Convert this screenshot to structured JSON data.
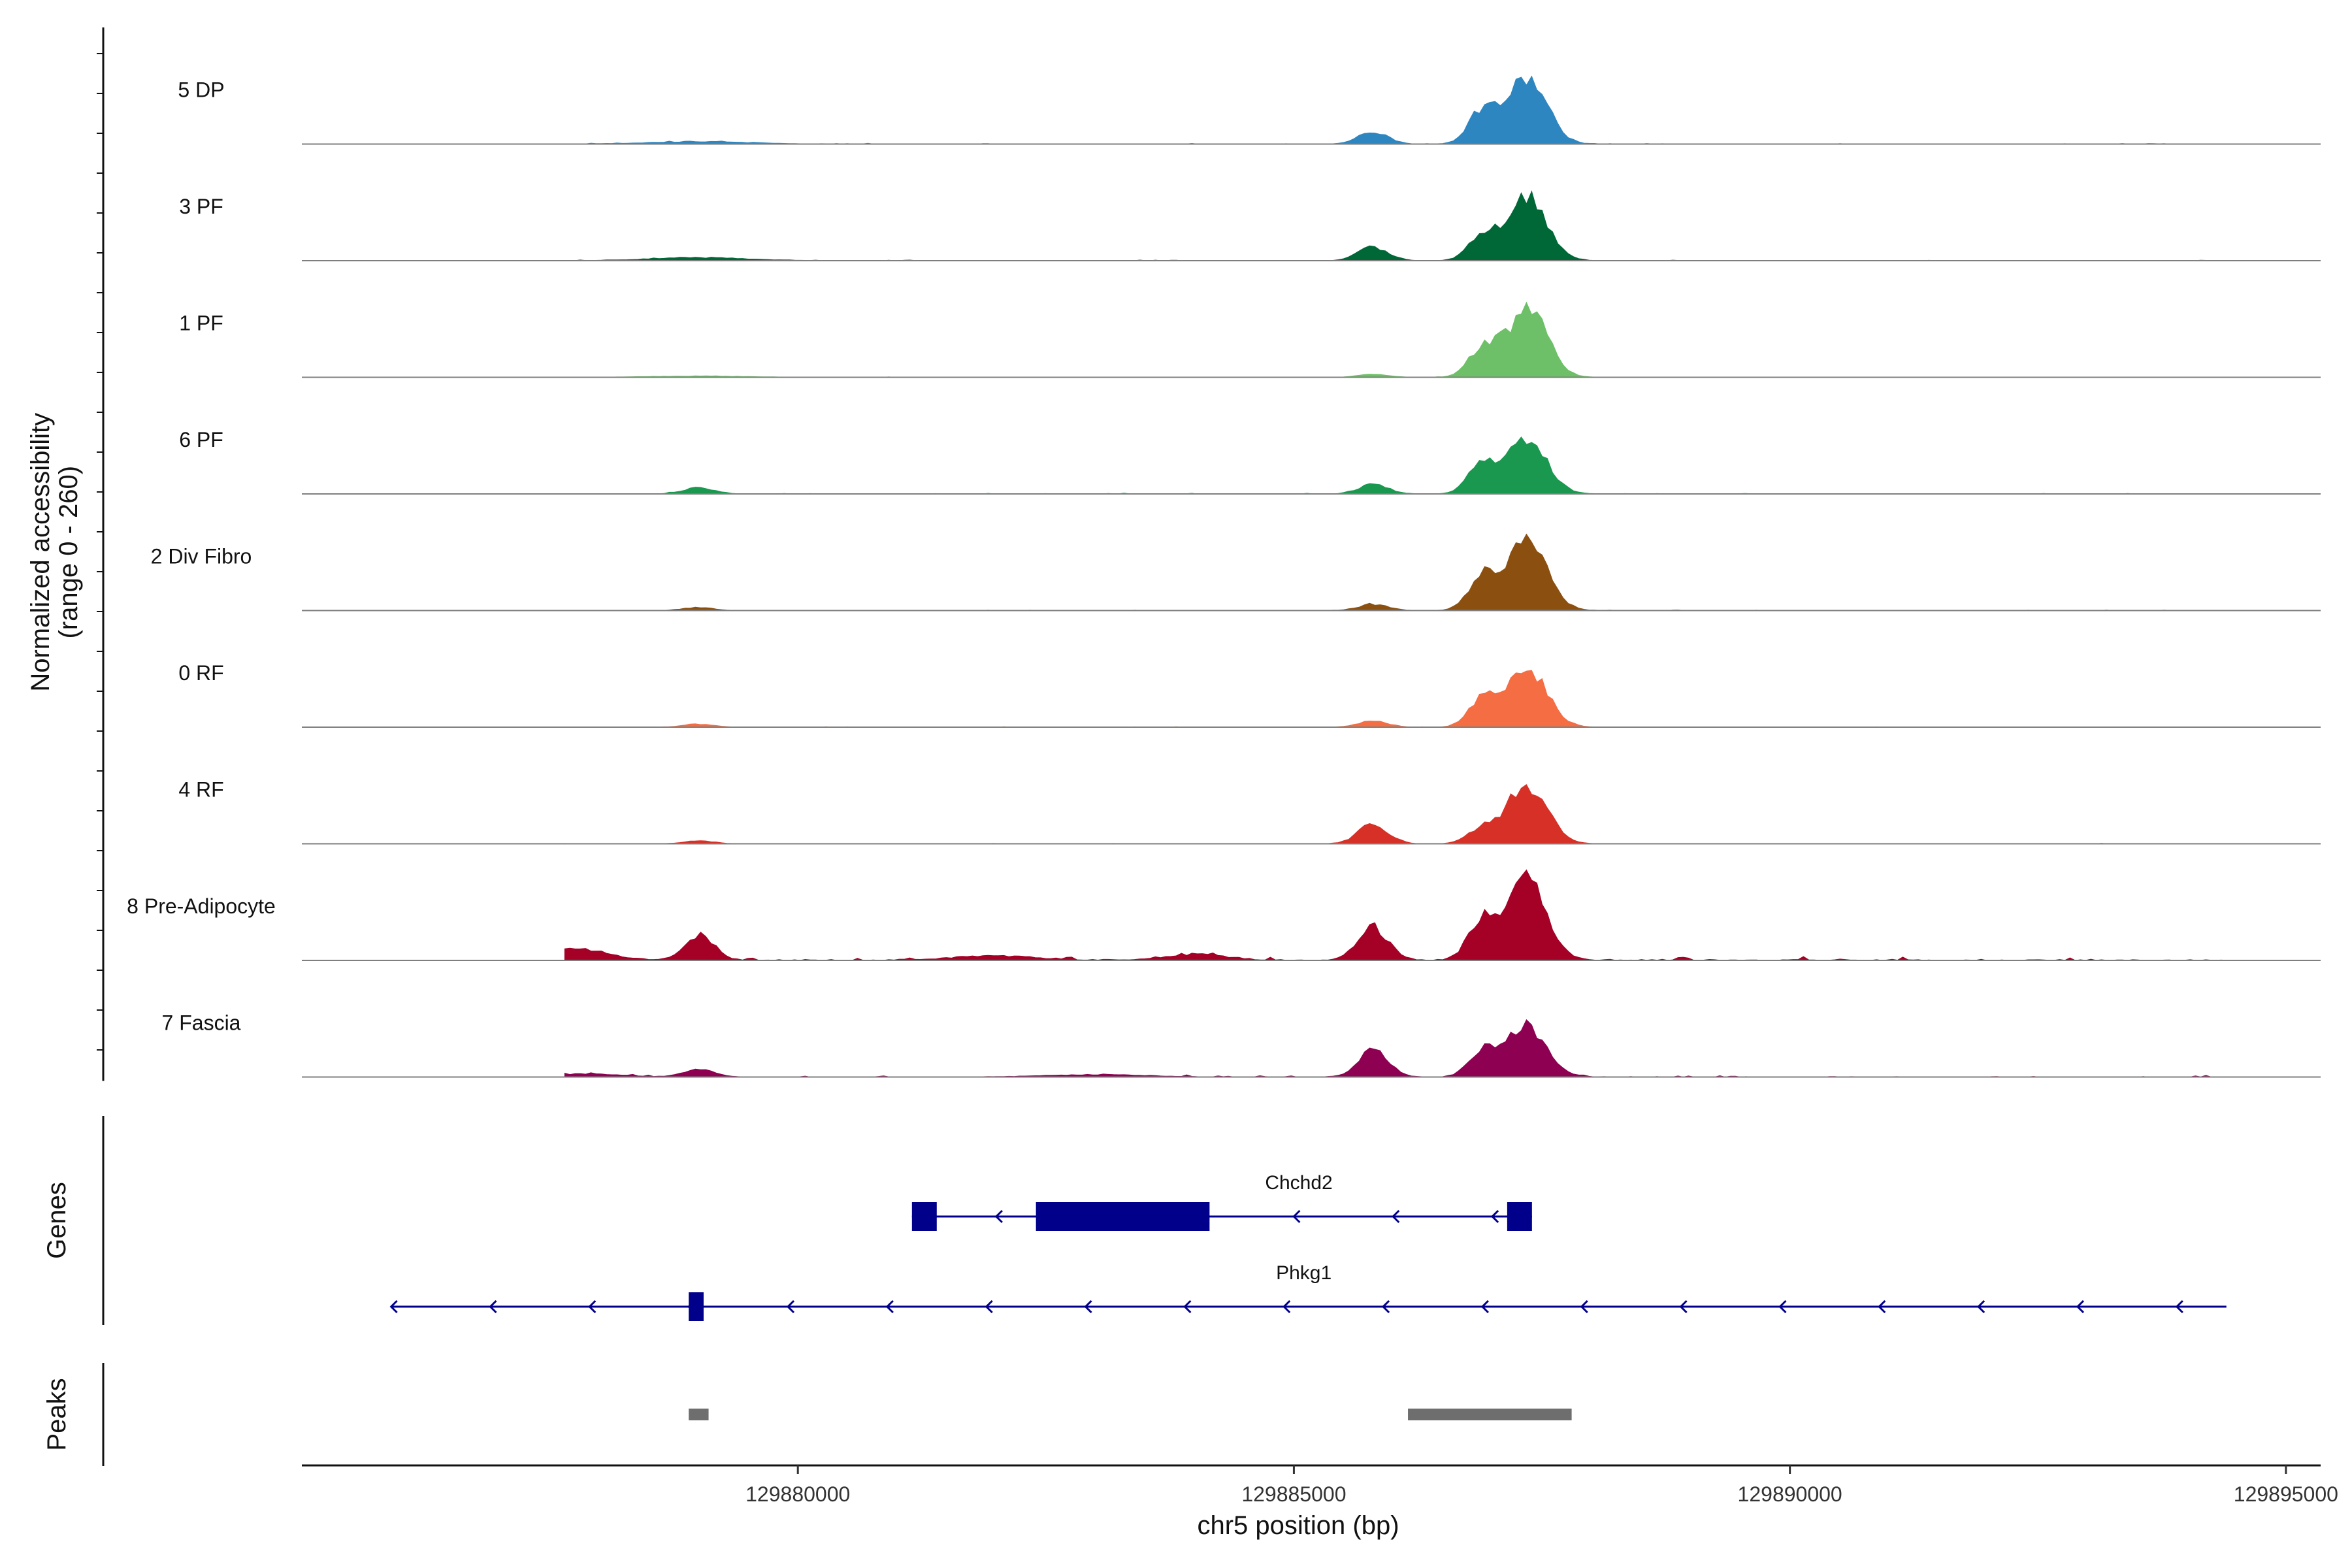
{
  "chart_data": {
    "type": "area",
    "title": "",
    "region": {
      "chrom": "chr5",
      "start": 129875000,
      "end": 129895350
    },
    "xlabel": "chr5 position (bp)",
    "x_ticks": [
      129880000,
      129885000,
      129890000,
      129895000
    ],
    "x_tick_labels": [
      "129880000",
      "129885000",
      "129890000",
      "129895000"
    ],
    "ylabel_line1": "Normalized accessibility",
    "ylabel_line2": "(range 0 - 260)",
    "ylim": [
      0,
      260
    ],
    "genes_label": "Genes",
    "peaks_label": "Peaks",
    "peak_centers": [
      129885800,
      129887350
    ],
    "series": [
      {
        "name": "5 DP",
        "color": "#2E86C1",
        "peaks": [
          [
            129885800,
            40,
            150
          ],
          [
            129886900,
            110,
            140
          ],
          [
            129887350,
            215,
            200
          ],
          [
            129879000,
            8,
            500
          ]
        ],
        "noise": 0.5
      },
      {
        "name": "3 PF",
        "color": "#006837",
        "peaks": [
          [
            129885800,
            45,
            150
          ],
          [
            129886900,
            80,
            140
          ],
          [
            129887350,
            215,
            200
          ],
          [
            129879000,
            10,
            500
          ]
        ],
        "noise": 0.4
      },
      {
        "name": "1 PF",
        "color": "#6DC067",
        "peaks": [
          [
            129885800,
            10,
            150
          ],
          [
            129886900,
            95,
            140
          ],
          [
            129887350,
            225,
            200
          ],
          [
            129879000,
            4,
            500
          ]
        ],
        "noise": 0.3
      },
      {
        "name": "6 PF",
        "color": "#1A9850",
        "peaks": [
          [
            129885800,
            30,
            150
          ],
          [
            129886900,
            100,
            140
          ],
          [
            129887350,
            175,
            200
          ],
          [
            129879000,
            20,
            150
          ]
        ],
        "noise": 0.5
      },
      {
        "name": "2 Div Fibro",
        "color": "#8B5010",
        "peaks": [
          [
            129885800,
            20,
            150
          ],
          [
            129886900,
            110,
            140
          ],
          [
            129887350,
            240,
            200
          ],
          [
            129879000,
            10,
            150
          ]
        ],
        "noise": 0.4
      },
      {
        "name": "0 RF",
        "color": "#F46D43",
        "peaks": [
          [
            129885800,
            20,
            150
          ],
          [
            129886900,
            90,
            140
          ],
          [
            129887350,
            195,
            200
          ],
          [
            129879000,
            10,
            150
          ]
        ],
        "noise": 0.3
      },
      {
        "name": "4 RF",
        "color": "#D73027",
        "peaks": [
          [
            129885800,
            65,
            150
          ],
          [
            129886900,
            50,
            140
          ],
          [
            129887350,
            195,
            200
          ],
          [
            129879000,
            10,
            150
          ]
        ],
        "noise": 0.3
      },
      {
        "name": "8 Pre-Adipocyte",
        "color": "#A50026",
        "peaks": [
          [
            129885800,
            110,
            150
          ],
          [
            129886900,
            130,
            140
          ],
          [
            129887350,
            260,
            200
          ],
          [
            129879000,
            80,
            150
          ],
          [
            129877800,
            35,
            300
          ],
          [
            129882000,
            15,
            400
          ],
          [
            129884000,
            20,
            300
          ]
        ],
        "noise": 2.5
      },
      {
        "name": "7 Fascia",
        "color": "#8E0152",
        "peaks": [
          [
            129885800,
            90,
            150
          ],
          [
            129886900,
            80,
            140
          ],
          [
            129887350,
            170,
            200
          ],
          [
            129879000,
            25,
            150
          ],
          [
            129877800,
            10,
            400
          ],
          [
            129883000,
            8,
            500
          ]
        ],
        "noise": 1.0
      }
    ],
    "genes": [
      {
        "name": "Chchd2",
        "strand": "-",
        "start": 129881150,
        "end": 129887400,
        "blocks": [
          [
            129881150,
            129881400
          ],
          [
            129882400,
            129884150
          ],
          [
            129887150,
            129887400
          ]
        ]
      },
      {
        "name": "Phkg1",
        "strand": "-",
        "start": 129875900,
        "end": 129894400,
        "blocks": [
          [
            129878900,
            129879050
          ]
        ]
      }
    ],
    "peaks_regions": [
      [
        129878900,
        129879100
      ],
      [
        129886150,
        129887800
      ]
    ]
  }
}
